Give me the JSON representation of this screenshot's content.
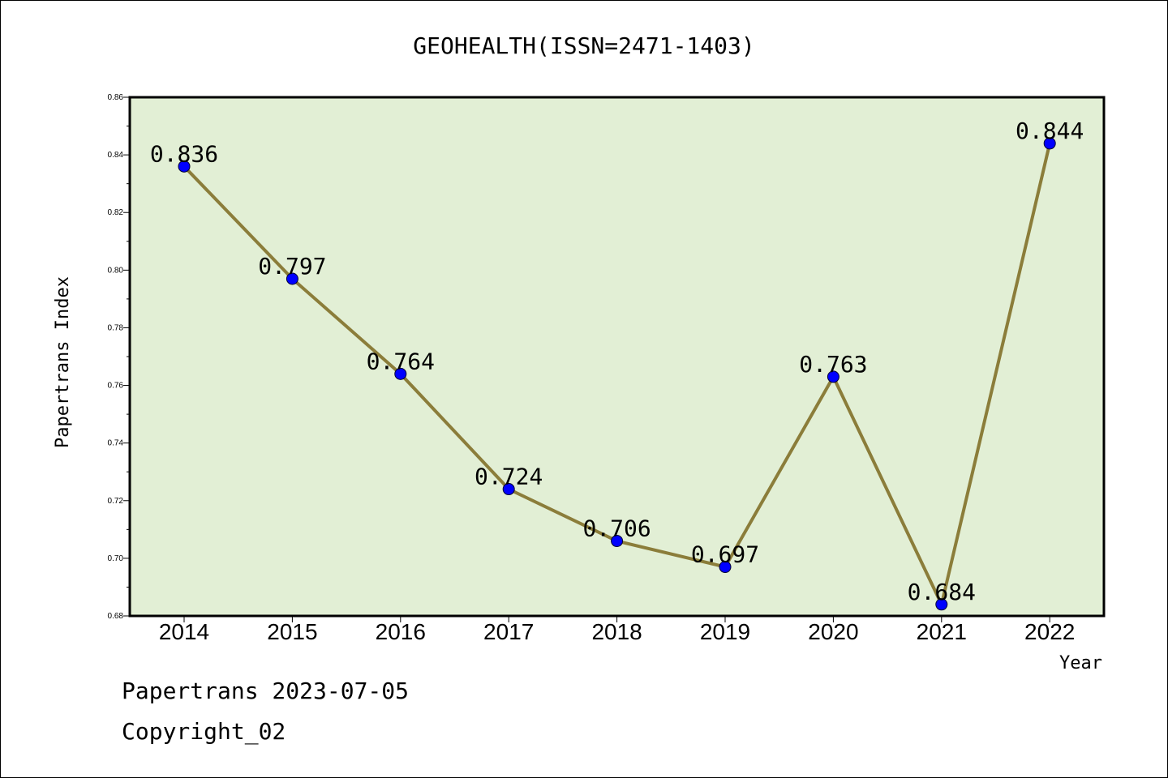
{
  "chart_data": {
    "type": "line",
    "title": "GEOHEALTH(ISSN=2471-1403)",
    "xlabel": "Year",
    "ylabel": "Papertrans Index",
    "categories": [
      "2014",
      "2015",
      "2016",
      "2017",
      "2018",
      "2019",
      "2020",
      "2021",
      "2022"
    ],
    "values": [
      0.836,
      0.797,
      0.764,
      0.724,
      0.706,
      0.697,
      0.763,
      0.684,
      0.844
    ],
    "data_labels": [
      "0.836",
      "0.797",
      "0.764",
      "0.724",
      "0.706",
      "0.697",
      "0.763",
      "0.684",
      "0.844"
    ],
    "ylim": [
      0.68,
      0.86
    ],
    "yticks": [
      "0.68",
      "0.70",
      "0.72",
      "0.74",
      "0.76",
      "0.78",
      "0.80",
      "0.82",
      "0.84",
      "0.86"
    ],
    "grid": false,
    "colors": {
      "plot_background": "#e2efd5",
      "line": "#8b7d3a",
      "marker": "#0000ff"
    }
  },
  "footer": {
    "date_text": "Papertrans 2023-07-05",
    "copyright_text": "Copyright_02"
  }
}
